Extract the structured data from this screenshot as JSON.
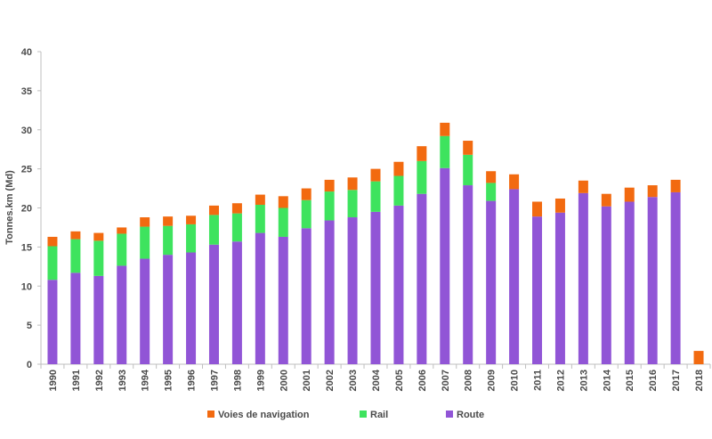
{
  "chart_data": {
    "type": "bar",
    "stacked": true,
    "ylabel": "Tonnes.km (Md)",
    "ylim": [
      0,
      40
    ],
    "yticks": [
      0,
      5,
      10,
      15,
      20,
      25,
      30,
      35,
      40
    ],
    "categories": [
      "1990",
      "1991",
      "1992",
      "1993",
      "1994",
      "1995",
      "1996",
      "1997",
      "1998",
      "1999",
      "2000",
      "2001",
      "2002",
      "2003",
      "2004",
      "2005",
      "2006",
      "2007",
      "2008",
      "2009",
      "2010",
      "2011",
      "2012",
      "2013",
      "2014",
      "2015",
      "2016",
      "2017",
      "2018"
    ],
    "series": [
      {
        "name": "Route",
        "color": "#9155d6",
        "values": [
          10.8,
          11.7,
          11.3,
          12.6,
          13.5,
          14.0,
          14.3,
          15.3,
          15.7,
          16.8,
          16.3,
          17.4,
          18.4,
          18.8,
          19.5,
          20.3,
          21.8,
          25.1,
          22.9,
          20.9,
          22.4,
          18.9,
          19.4,
          21.9,
          20.2,
          20.8,
          21.4,
          22.0,
          0
        ]
      },
      {
        "name": "Rail",
        "color": "#3ee35e",
        "values": [
          4.3,
          4.3,
          4.5,
          4.1,
          4.1,
          3.7,
          3.6,
          3.8,
          3.6,
          3.6,
          3.7,
          3.6,
          3.7,
          3.5,
          3.9,
          3.8,
          4.2,
          4.1,
          3.9,
          2.3,
          0,
          0,
          0,
          0,
          0,
          0,
          0,
          0,
          0
        ]
      },
      {
        "name": "Voies de navigation",
        "color": "#f26a10",
        "values": [
          1.2,
          1.0,
          1.0,
          0.8,
          1.2,
          1.2,
          1.1,
          1.2,
          1.3,
          1.3,
          1.5,
          1.5,
          1.5,
          1.6,
          1.6,
          1.8,
          1.9,
          1.7,
          1.8,
          1.5,
          1.9,
          1.9,
          1.8,
          1.6,
          1.6,
          1.8,
          1.5,
          1.6,
          1.7
        ]
      }
    ],
    "legend": {
      "placement": "bottom",
      "entries": [
        "Voies de navigation",
        "Rail",
        "Route"
      ]
    },
    "grid": false,
    "axis_color": "#bfbfbf"
  }
}
